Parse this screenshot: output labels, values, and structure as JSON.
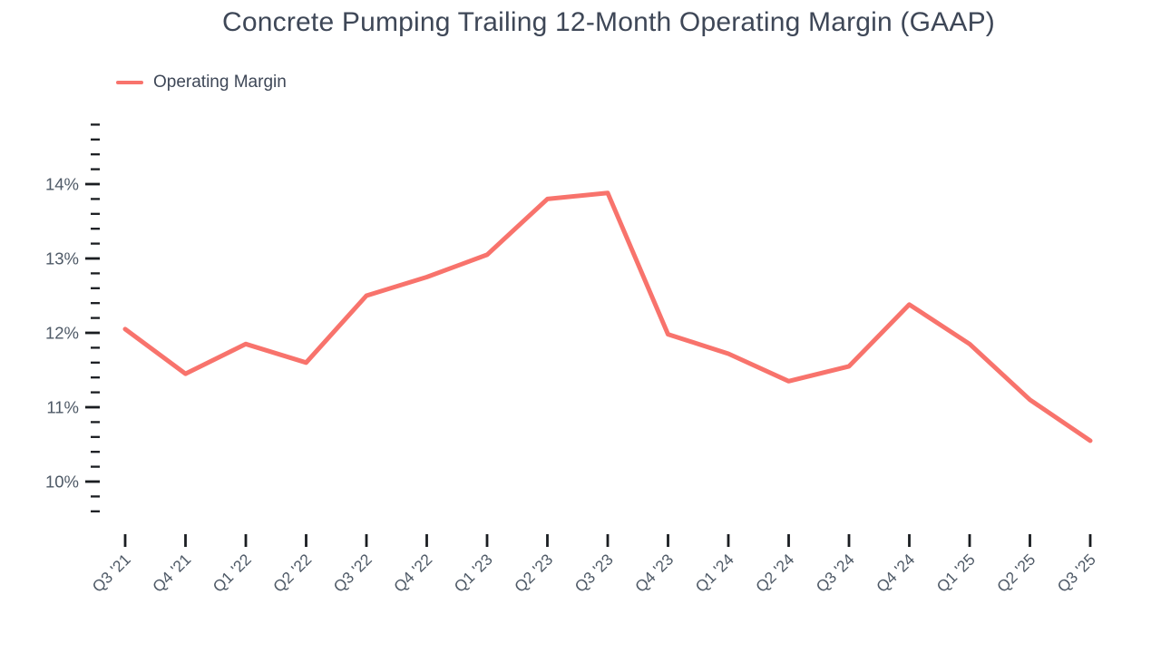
{
  "chart_data": {
    "type": "line",
    "title": "Concrete Pumping Trailing 12-Month Operating Margin (GAAP)",
    "categories": [
      "Q3 '21",
      "Q4 '21",
      "Q1 '22",
      "Q2 '22",
      "Q3 '22",
      "Q4 '22",
      "Q1 '23",
      "Q2 '23",
      "Q3 '23",
      "Q4 '23",
      "Q1 '24",
      "Q2 '24",
      "Q3 '24",
      "Q4 '24",
      "Q1 '25",
      "Q2 '25",
      "Q3 '25"
    ],
    "series": [
      {
        "name": "Operating Margin",
        "color": "#f8736c",
        "values": [
          12.05,
          11.45,
          11.85,
          11.6,
          12.5,
          12.75,
          13.05,
          13.8,
          13.88,
          11.98,
          11.72,
          11.35,
          11.55,
          12.38,
          11.85,
          11.1,
          10.55
        ]
      }
    ],
    "y_axis": {
      "min": 9.6,
      "max": 14.8,
      "major_step": 1,
      "minor_step": 0.2,
      "labeled_major_values": [
        14,
        13,
        12,
        11,
        10
      ],
      "tick_labels": [
        "14%",
        "13%",
        "12%",
        "11%",
        "10%"
      ],
      "unit": "%"
    },
    "x_axis": {
      "label_rotation_deg": -45
    },
    "legend": {
      "position": "top-left",
      "entries": [
        {
          "label": "Operating Margin",
          "color": "#f8736c"
        }
      ]
    },
    "grid": false,
    "colors": {
      "background": "#ffffff",
      "title_text": "#3e4757",
      "axis_label_text": "#4e5966",
      "tick_marks": "#1a1d21"
    }
  }
}
